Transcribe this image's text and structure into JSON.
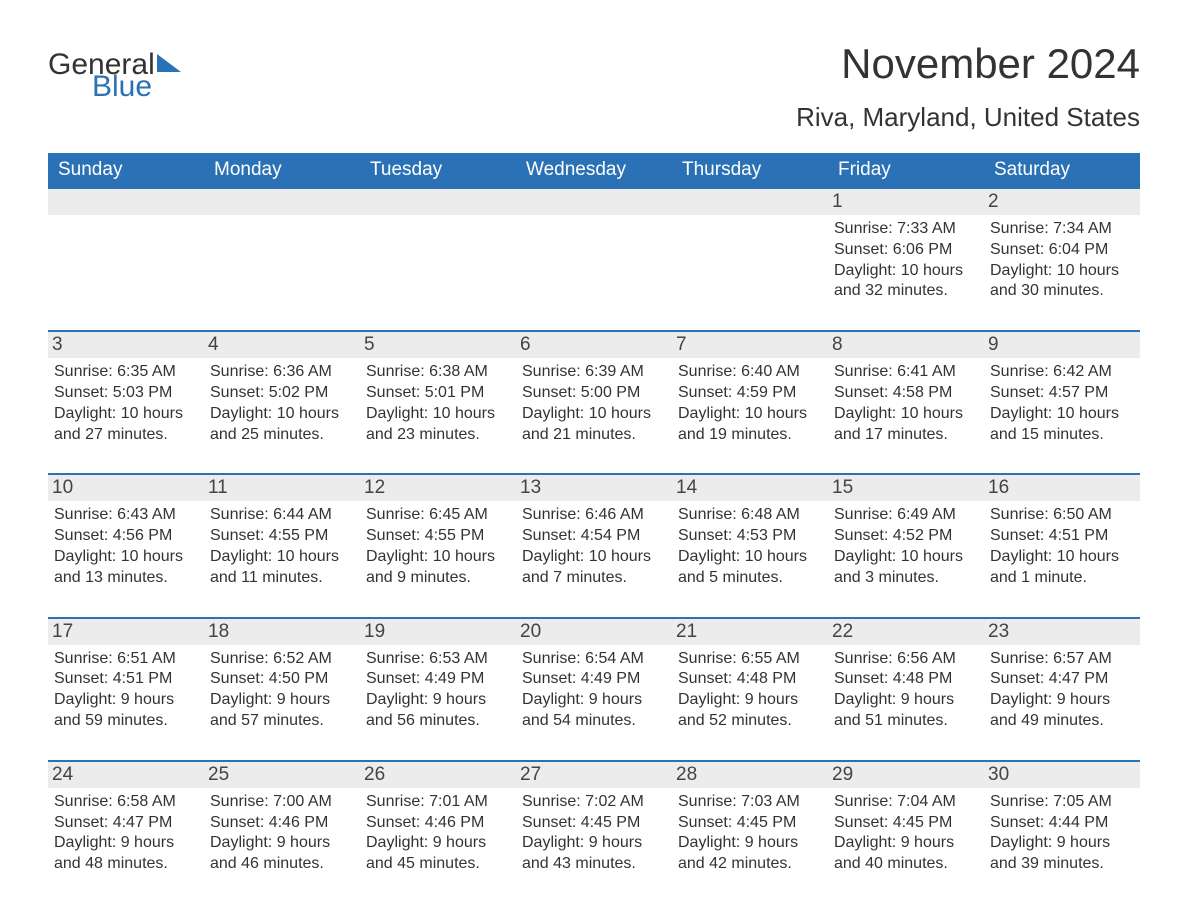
{
  "logo": {
    "part1": "General",
    "part2": "Blue"
  },
  "title": "November 2024",
  "location": "Riva, Maryland, United States",
  "colors": {
    "header_bg": "#2a72b5",
    "header_text": "#ffffff",
    "daynum_bg": "#ececec",
    "border_top": "#2a72b5",
    "text": "#333333",
    "page_bg": "#ffffff"
  },
  "fonts": {
    "title_size_pt": 32,
    "location_size_pt": 20,
    "header_size_pt": 14,
    "body_size_pt": 12
  },
  "day_labels": [
    "Sunday",
    "Monday",
    "Tuesday",
    "Wednesday",
    "Thursday",
    "Friday",
    "Saturday"
  ],
  "weeks": [
    [
      null,
      null,
      null,
      null,
      null,
      {
        "n": "1",
        "sunrise": "7:33 AM",
        "sunset": "6:06 PM",
        "daylight": "10 hours and 32 minutes."
      },
      {
        "n": "2",
        "sunrise": "7:34 AM",
        "sunset": "6:04 PM",
        "daylight": "10 hours and 30 minutes."
      }
    ],
    [
      {
        "n": "3",
        "sunrise": "6:35 AM",
        "sunset": "5:03 PM",
        "daylight": "10 hours and 27 minutes."
      },
      {
        "n": "4",
        "sunrise": "6:36 AM",
        "sunset": "5:02 PM",
        "daylight": "10 hours and 25 minutes."
      },
      {
        "n": "5",
        "sunrise": "6:38 AM",
        "sunset": "5:01 PM",
        "daylight": "10 hours and 23 minutes."
      },
      {
        "n": "6",
        "sunrise": "6:39 AM",
        "sunset": "5:00 PM",
        "daylight": "10 hours and 21 minutes."
      },
      {
        "n": "7",
        "sunrise": "6:40 AM",
        "sunset": "4:59 PM",
        "daylight": "10 hours and 19 minutes."
      },
      {
        "n": "8",
        "sunrise": "6:41 AM",
        "sunset": "4:58 PM",
        "daylight": "10 hours and 17 minutes."
      },
      {
        "n": "9",
        "sunrise": "6:42 AM",
        "sunset": "4:57 PM",
        "daylight": "10 hours and 15 minutes."
      }
    ],
    [
      {
        "n": "10",
        "sunrise": "6:43 AM",
        "sunset": "4:56 PM",
        "daylight": "10 hours and 13 minutes."
      },
      {
        "n": "11",
        "sunrise": "6:44 AM",
        "sunset": "4:55 PM",
        "daylight": "10 hours and 11 minutes."
      },
      {
        "n": "12",
        "sunrise": "6:45 AM",
        "sunset": "4:55 PM",
        "daylight": "10 hours and 9 minutes."
      },
      {
        "n": "13",
        "sunrise": "6:46 AM",
        "sunset": "4:54 PM",
        "daylight": "10 hours and 7 minutes."
      },
      {
        "n": "14",
        "sunrise": "6:48 AM",
        "sunset": "4:53 PM",
        "daylight": "10 hours and 5 minutes."
      },
      {
        "n": "15",
        "sunrise": "6:49 AM",
        "sunset": "4:52 PM",
        "daylight": "10 hours and 3 minutes."
      },
      {
        "n": "16",
        "sunrise": "6:50 AM",
        "sunset": "4:51 PM",
        "daylight": "10 hours and 1 minute."
      }
    ],
    [
      {
        "n": "17",
        "sunrise": "6:51 AM",
        "sunset": "4:51 PM",
        "daylight": "9 hours and 59 minutes."
      },
      {
        "n": "18",
        "sunrise": "6:52 AM",
        "sunset": "4:50 PM",
        "daylight": "9 hours and 57 minutes."
      },
      {
        "n": "19",
        "sunrise": "6:53 AM",
        "sunset": "4:49 PM",
        "daylight": "9 hours and 56 minutes."
      },
      {
        "n": "20",
        "sunrise": "6:54 AM",
        "sunset": "4:49 PM",
        "daylight": "9 hours and 54 minutes."
      },
      {
        "n": "21",
        "sunrise": "6:55 AM",
        "sunset": "4:48 PM",
        "daylight": "9 hours and 52 minutes."
      },
      {
        "n": "22",
        "sunrise": "6:56 AM",
        "sunset": "4:48 PM",
        "daylight": "9 hours and 51 minutes."
      },
      {
        "n": "23",
        "sunrise": "6:57 AM",
        "sunset": "4:47 PM",
        "daylight": "9 hours and 49 minutes."
      }
    ],
    [
      {
        "n": "24",
        "sunrise": "6:58 AM",
        "sunset": "4:47 PM",
        "daylight": "9 hours and 48 minutes."
      },
      {
        "n": "25",
        "sunrise": "7:00 AM",
        "sunset": "4:46 PM",
        "daylight": "9 hours and 46 minutes."
      },
      {
        "n": "26",
        "sunrise": "7:01 AM",
        "sunset": "4:46 PM",
        "daylight": "9 hours and 45 minutes."
      },
      {
        "n": "27",
        "sunrise": "7:02 AM",
        "sunset": "4:45 PM",
        "daylight": "9 hours and 43 minutes."
      },
      {
        "n": "28",
        "sunrise": "7:03 AM",
        "sunset": "4:45 PM",
        "daylight": "9 hours and 42 minutes."
      },
      {
        "n": "29",
        "sunrise": "7:04 AM",
        "sunset": "4:45 PM",
        "daylight": "9 hours and 40 minutes."
      },
      {
        "n": "30",
        "sunrise": "7:05 AM",
        "sunset": "4:44 PM",
        "daylight": "9 hours and 39 minutes."
      }
    ]
  ],
  "labels": {
    "sunrise_prefix": "Sunrise: ",
    "sunset_prefix": "Sunset: ",
    "daylight_prefix": "Daylight: "
  }
}
